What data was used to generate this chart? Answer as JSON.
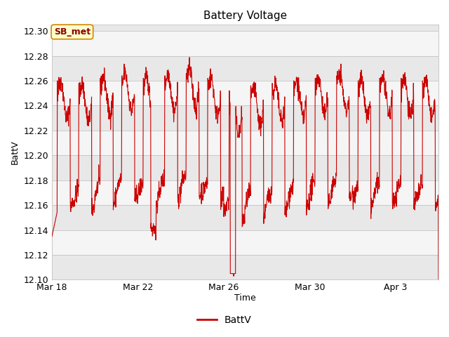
{
  "title": "Battery Voltage",
  "xlabel": "Time",
  "ylabel": "BattV",
  "ylim": [
    12.1,
    12.305
  ],
  "yticks": [
    12.1,
    12.12,
    12.14,
    12.16,
    12.18,
    12.2,
    12.22,
    12.24,
    12.26,
    12.28,
    12.3
  ],
  "xtick_labels": [
    "Mar 18",
    "Mar 22",
    "Mar 26",
    "Mar 30",
    "Apr 3"
  ],
  "xtick_positions": [
    0,
    4,
    8,
    12,
    16
  ],
  "xlim": [
    0,
    18
  ],
  "line_color": "#cc0000",
  "line_width": 0.8,
  "fig_bg_color": "#ffffff",
  "plot_bg_color": "#e8e8e8",
  "band_color_light": "#f5f5f5",
  "band_color_dark": "#e0e0e0",
  "legend_label": "BattV",
  "sb_met_label": "SB_met",
  "sb_met_bg": "#ffffcc",
  "sb_met_border": "#cc8800",
  "sb_met_text_color": "#8b0000",
  "title_fontsize": 11,
  "label_fontsize": 9,
  "tick_fontsize": 9,
  "legend_fontsize": 10,
  "figsize": [
    6.4,
    4.8
  ],
  "dpi": 100
}
